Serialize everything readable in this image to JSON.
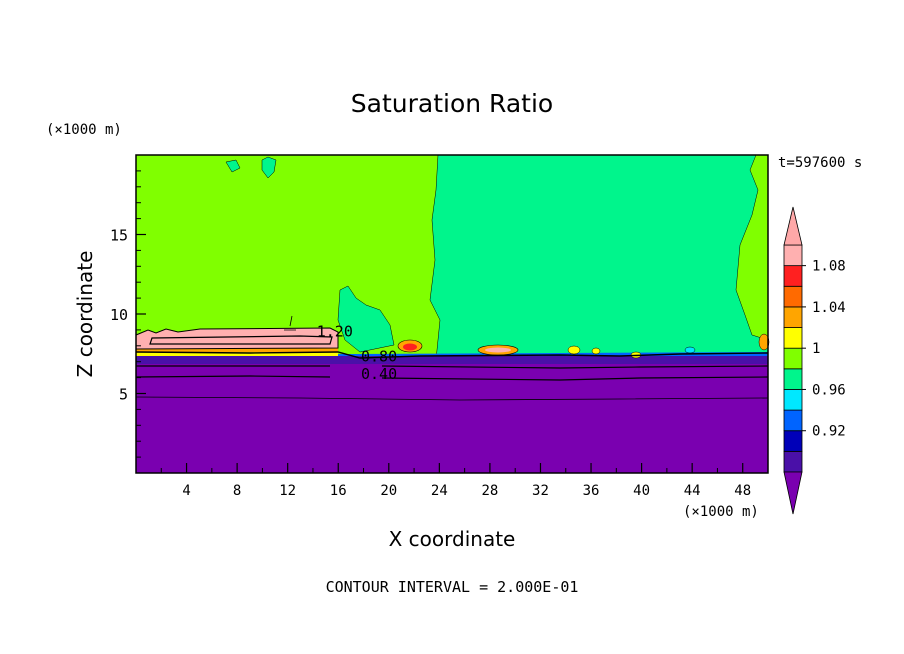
{
  "chart_data": {
    "type": "heatmap",
    "title": "Saturation Ratio",
    "xlabel": "X coordinate",
    "ylabel": "Z coordinate",
    "x_unit": "(×1000 m)",
    "y_unit": "(×1000 m)",
    "time_label": "t=597600 s",
    "footer": "CONTOUR INTERVAL = 2.000E-01",
    "xlim": [
      0,
      50
    ],
    "ylim": [
      0,
      20
    ],
    "x_ticks": [
      4,
      8,
      12,
      16,
      20,
      24,
      28,
      32,
      36,
      40,
      44,
      48
    ],
    "y_ticks": [
      5,
      10,
      15
    ],
    "contour_labels": [
      {
        "text": "1.20",
        "x": 14.3,
        "y": 8.6
      },
      {
        "text": "0.80",
        "x": 17.8,
        "y": 7.0
      },
      {
        "text": "0.40",
        "x": 17.8,
        "y": 5.9
      }
    ],
    "colorbar": {
      "levels": [
        "0.92",
        "0.96",
        "1",
        "1.04",
        "1.08"
      ],
      "colors": [
        "#4a10a8",
        "#0000b8",
        "#0064ff",
        "#00e8ff",
        "#00f58c",
        "#80ff00",
        "#ffff00",
        "#ffa500",
        "#ff6a00",
        "#ff2020",
        "#ffb0b0"
      ],
      "under_color": "#7a00b0",
      "over_color": "#ffa8a8"
    },
    "colors": {
      "dry_layer": "#7a00b0",
      "supersat_upper": "#80ff00",
      "near_one": "#00f58c",
      "cloud": "#ffb0b0"
    }
  }
}
